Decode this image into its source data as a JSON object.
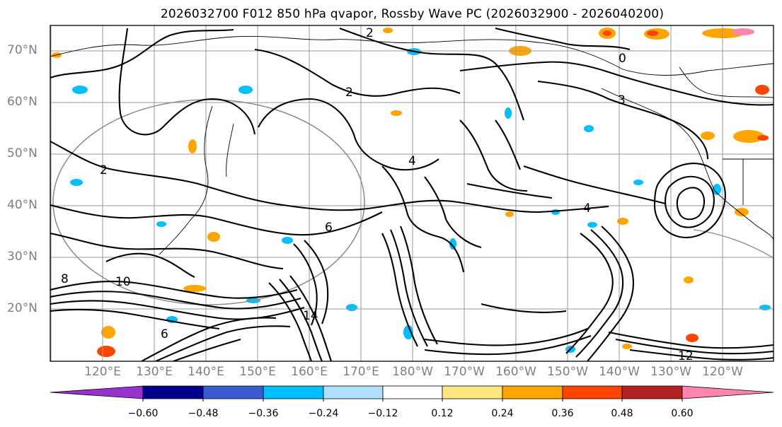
{
  "title": "2026032700 F012 850 hPa qvapor, Rossby Wave PC (2026032900 - 2026040200)",
  "lat_labels": [
    "70°N",
    "60°N",
    "50°N",
    "40°N",
    "30°N",
    "20°N"
  ],
  "lon_labels": [
    "120°E",
    "130°E",
    "140°E",
    "150°E",
    "160°E",
    "170°E",
    "180°W",
    "170°W",
    "160°W",
    "150°W",
    "140°W",
    "130°W",
    "120°W"
  ],
  "colorbar": {
    "colors": [
      "#9932cc",
      "#00008b",
      "#3a5bd0",
      "#00bfff",
      "#b0e0ff",
      "#ffffff",
      "#ffe680",
      "#ffa500",
      "#ff4500",
      "#b22222",
      "#ff85b0"
    ],
    "tick_labels": [
      "−0.60",
      "−0.48",
      "−0.36",
      "−0.24",
      "−0.12",
      "0.12",
      "0.24",
      "0.36",
      "0.48",
      "0.60"
    ]
  },
  "contour_labels": [
    "2",
    "2",
    "4",
    "4",
    "6",
    "6",
    "8",
    "10",
    "12",
    "14",
    "2",
    "0",
    "3"
  ]
}
